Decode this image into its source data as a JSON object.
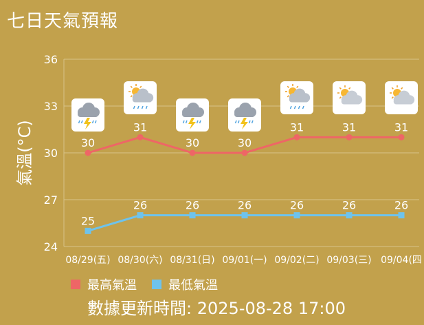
{
  "title": "七日天氣預報",
  "updated": "數據更新時間: 2025-08-28 17:00",
  "colors": {
    "background": "#c2a14c",
    "grid": "#d8c48a",
    "high": "#ee6666",
    "low": "#6ec3ec",
    "text": "#ffffff"
  },
  "chart_data": {
    "type": "line",
    "ylabel": "氣溫(°C)",
    "ylim": [
      24,
      36
    ],
    "yticks": [
      24,
      27,
      30,
      33,
      36
    ],
    "categories": [
      "08/29(五)",
      "08/30(六)",
      "08/31(日)",
      "09/01(一)",
      "09/02(二)",
      "09/03(三)",
      "09/04(四"
    ],
    "icons": [
      "thunderstorm-icon",
      "partly-cloudy-rain-icon",
      "thunderstorm-icon",
      "thunderstorm-icon",
      "partly-cloudy-rain-icon",
      "partly-cloudy-icon",
      "partly-cloudy-icon"
    ],
    "series": [
      {
        "name": "最高氣溫",
        "values": [
          30,
          31,
          30,
          30,
          31,
          31,
          31
        ],
        "color": "#ee6666"
      },
      {
        "name": "最低氣溫",
        "values": [
          25,
          26,
          26,
          26,
          26,
          26,
          26
        ],
        "color": "#6ec3ec"
      }
    ],
    "grid": true,
    "legend": "bottom-left"
  }
}
